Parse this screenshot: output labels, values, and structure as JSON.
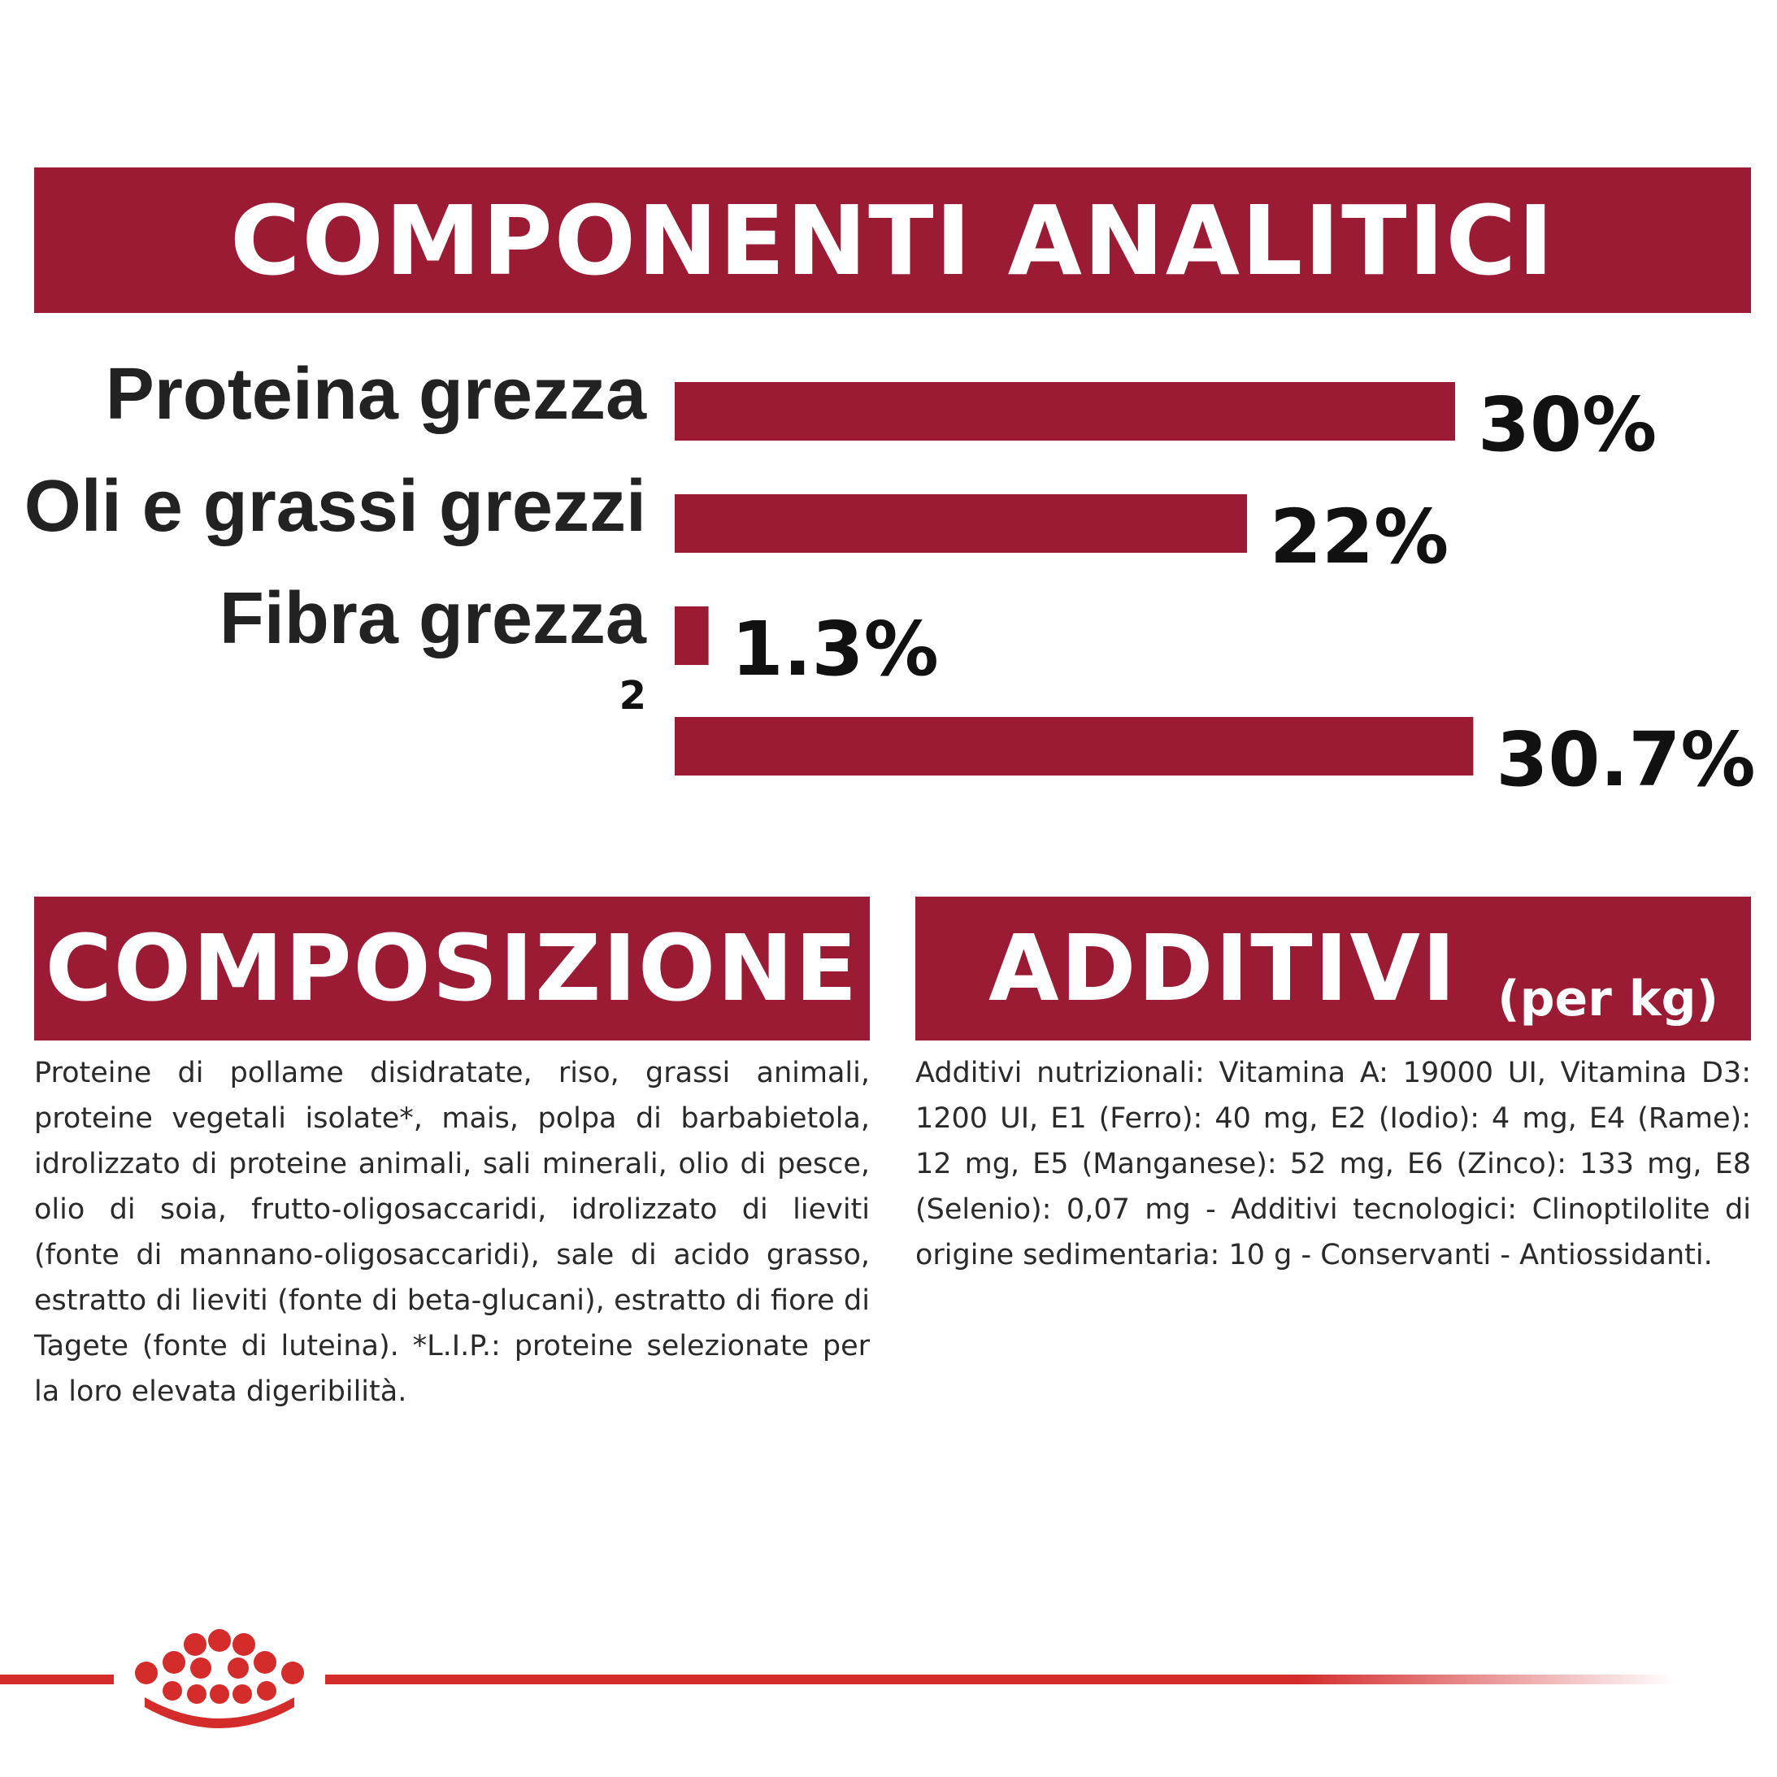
{
  "header": {
    "analytic_title": "COMPONENTI ANALITICI",
    "composition_title": "COMPOSIZIONE",
    "additives_title": "ADDITIVI",
    "additives_unit": "(per kg)"
  },
  "colors": {
    "brand_red": "#9b1b34",
    "logo_red": "#d42b2b"
  },
  "chart_data": {
    "type": "bar",
    "orientation": "horizontal",
    "title": "COMPONENTI ANALITICI",
    "unit": "%",
    "categories": [
      "Proteina grezza",
      "Oli e grassi grezzi",
      "Fibra grezza",
      ""
    ],
    "values": [
      30,
      22,
      1.3,
      30.7
    ],
    "value_labels": [
      "30%",
      "22%",
      "1.3%",
      "30.7%"
    ],
    "annotations": [
      {
        "category_index": 3,
        "text": "2"
      }
    ]
  },
  "composition": {
    "text": "Proteine di pollame disidratate, riso, grassi animali, proteine vegetali isolate*, mais, polpa di barbabietola, idrolizzato di proteine animali, sali minerali, olio di pesce, olio di soia, frutto-oligosaccaridi, idrolizzato di lieviti (fonte di mannano-oligosaccaridi), sale di acido grasso, estratto di lieviti (fonte di beta-glucani), estratto di fiore di Tagete (fonte di luteina). *L.I.P.: proteine selezionate per la loro elevata digeribilità."
  },
  "additives": {
    "text": "Additivi nutrizionali: Vitamina A: 19000 UI, Vitamina D3: 1200 UI, E1 (Ferro): 40 mg, E2 (Iodio): 4 mg, E4 (Rame): 12 mg, E5 (Manganese): 52 mg, E6 (Zinco): 133 mg, E8 (Selenio): 0,07 mg - Additivi tecnologici: Clinoptilolite di origine sedimentaria: 10 g - Conservanti - Antiossidanti."
  },
  "footer": {
    "logo_icon": "crown-logo-icon"
  }
}
